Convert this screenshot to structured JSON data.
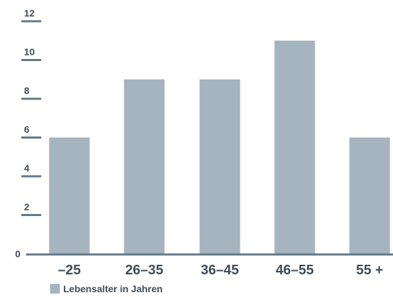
{
  "chart_data": {
    "type": "bar",
    "categories": [
      "–25",
      "26–35",
      "36–45",
      "46–55",
      "55 +"
    ],
    "values": [
      6,
      9,
      9,
      11,
      6
    ],
    "ylim": [
      0,
      12
    ],
    "yticks": [
      "0",
      "2",
      "4",
      "6",
      "8",
      "10",
      "12"
    ],
    "ytick_values": [
      0,
      2,
      4,
      6,
      8,
      10,
      12
    ],
    "series": [
      {
        "name": "Lebensalter in Jahren",
        "values": [
          6,
          9,
          9,
          11,
          6
        ]
      }
    ],
    "legend": "bottom-left",
    "grid": false,
    "colors": {
      "bar": "#a5b4bf",
      "axis": "#637784",
      "text": "#3f4d59"
    }
  }
}
